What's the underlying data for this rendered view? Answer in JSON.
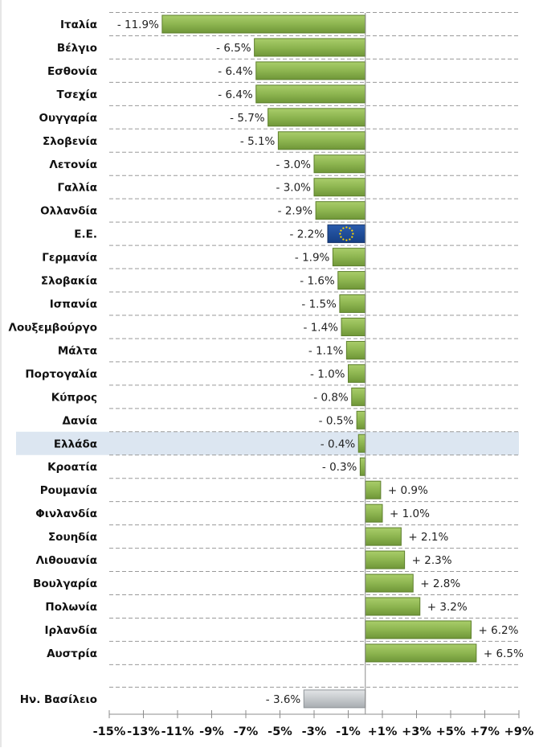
{
  "chart_data": {
    "type": "bar",
    "orientation": "horizontal",
    "title": "",
    "xlabel": "",
    "ylabel": "",
    "xlim": [
      -15,
      9
    ],
    "grid": "dashed horizontal separators",
    "highlight_category": "Ελλάδα",
    "colors": {
      "default": "#8db550",
      "eu": "#1f4e9a",
      "non_eu": "#c5c9cc",
      "highlight_band": "#dce6f1"
    },
    "categories": [
      "Ιταλία",
      "Βέλγιο",
      "Εσθονία",
      "Τσεχία",
      "Ουγγαρία",
      "Σλοβενία",
      "Λετονία",
      "Γαλλία",
      "Ολλανδία",
      "Ε.Ε.",
      "Γερμανία",
      "Σλοβακία",
      "Ισπανία",
      "Λουξεμβούργο",
      "Μάλτα",
      "Πορτογαλία",
      "Κύπρος",
      "Δανία",
      "Ελλάδα",
      "Κροατία",
      "Ρουμανία",
      "Φινλανδία",
      "Σουηδία",
      "Λιθουανία",
      "Βουλγαρία",
      "Πολωνία",
      "Ιρλανδία",
      "Αυστρία",
      "Ην. Βασίλειο"
    ],
    "values": [
      -11.9,
      -6.5,
      -6.4,
      -6.4,
      -5.7,
      -5.1,
      -3.0,
      -3.0,
      -2.9,
      -2.2,
      -1.9,
      -1.6,
      -1.5,
      -1.4,
      -1.1,
      -1.0,
      -0.8,
      -0.5,
      -0.4,
      -0.3,
      0.9,
      1.0,
      2.1,
      2.3,
      2.8,
      3.2,
      6.2,
      6.5,
      -3.6
    ],
    "labels": [
      "- 11.9%",
      "- 6.5%",
      "- 6.4%",
      "- 6.4%",
      "- 5.7%",
      "- 5.1%",
      "- 3.0%",
      "- 3.0%",
      "- 2.9%",
      "- 2.2%",
      "- 1.9%",
      "- 1.6%",
      "- 1.5%",
      "- 1.4%",
      "- 1.1%",
      "- 1.0%",
      "- 0.8%",
      "- 0.5%",
      "- 0.4%",
      "- 0.3%",
      "+ 0.9%",
      "+ 1.0%",
      "+ 2.1%",
      "+ 2.3%",
      "+ 2.8%",
      "+ 3.2%",
      "+ 6.2%",
      "+ 6.5%",
      "- 3.6%"
    ],
    "bar_style": [
      "eu-flag-if-Ε.Ε.",
      "grey-if-Ην. Βασίλειο"
    ],
    "xticks": [
      -15,
      -13,
      -11,
      -9,
      -7,
      -5,
      -3,
      -1,
      1,
      3,
      5,
      7,
      9
    ],
    "xtick_labels": [
      "-15%",
      "-13%",
      "-11%",
      "-9%",
      "-7%",
      "-5%",
      "-3%",
      "-1%",
      "+1%",
      "+3%",
      "+5%",
      "+7%",
      "+9%"
    ]
  }
}
